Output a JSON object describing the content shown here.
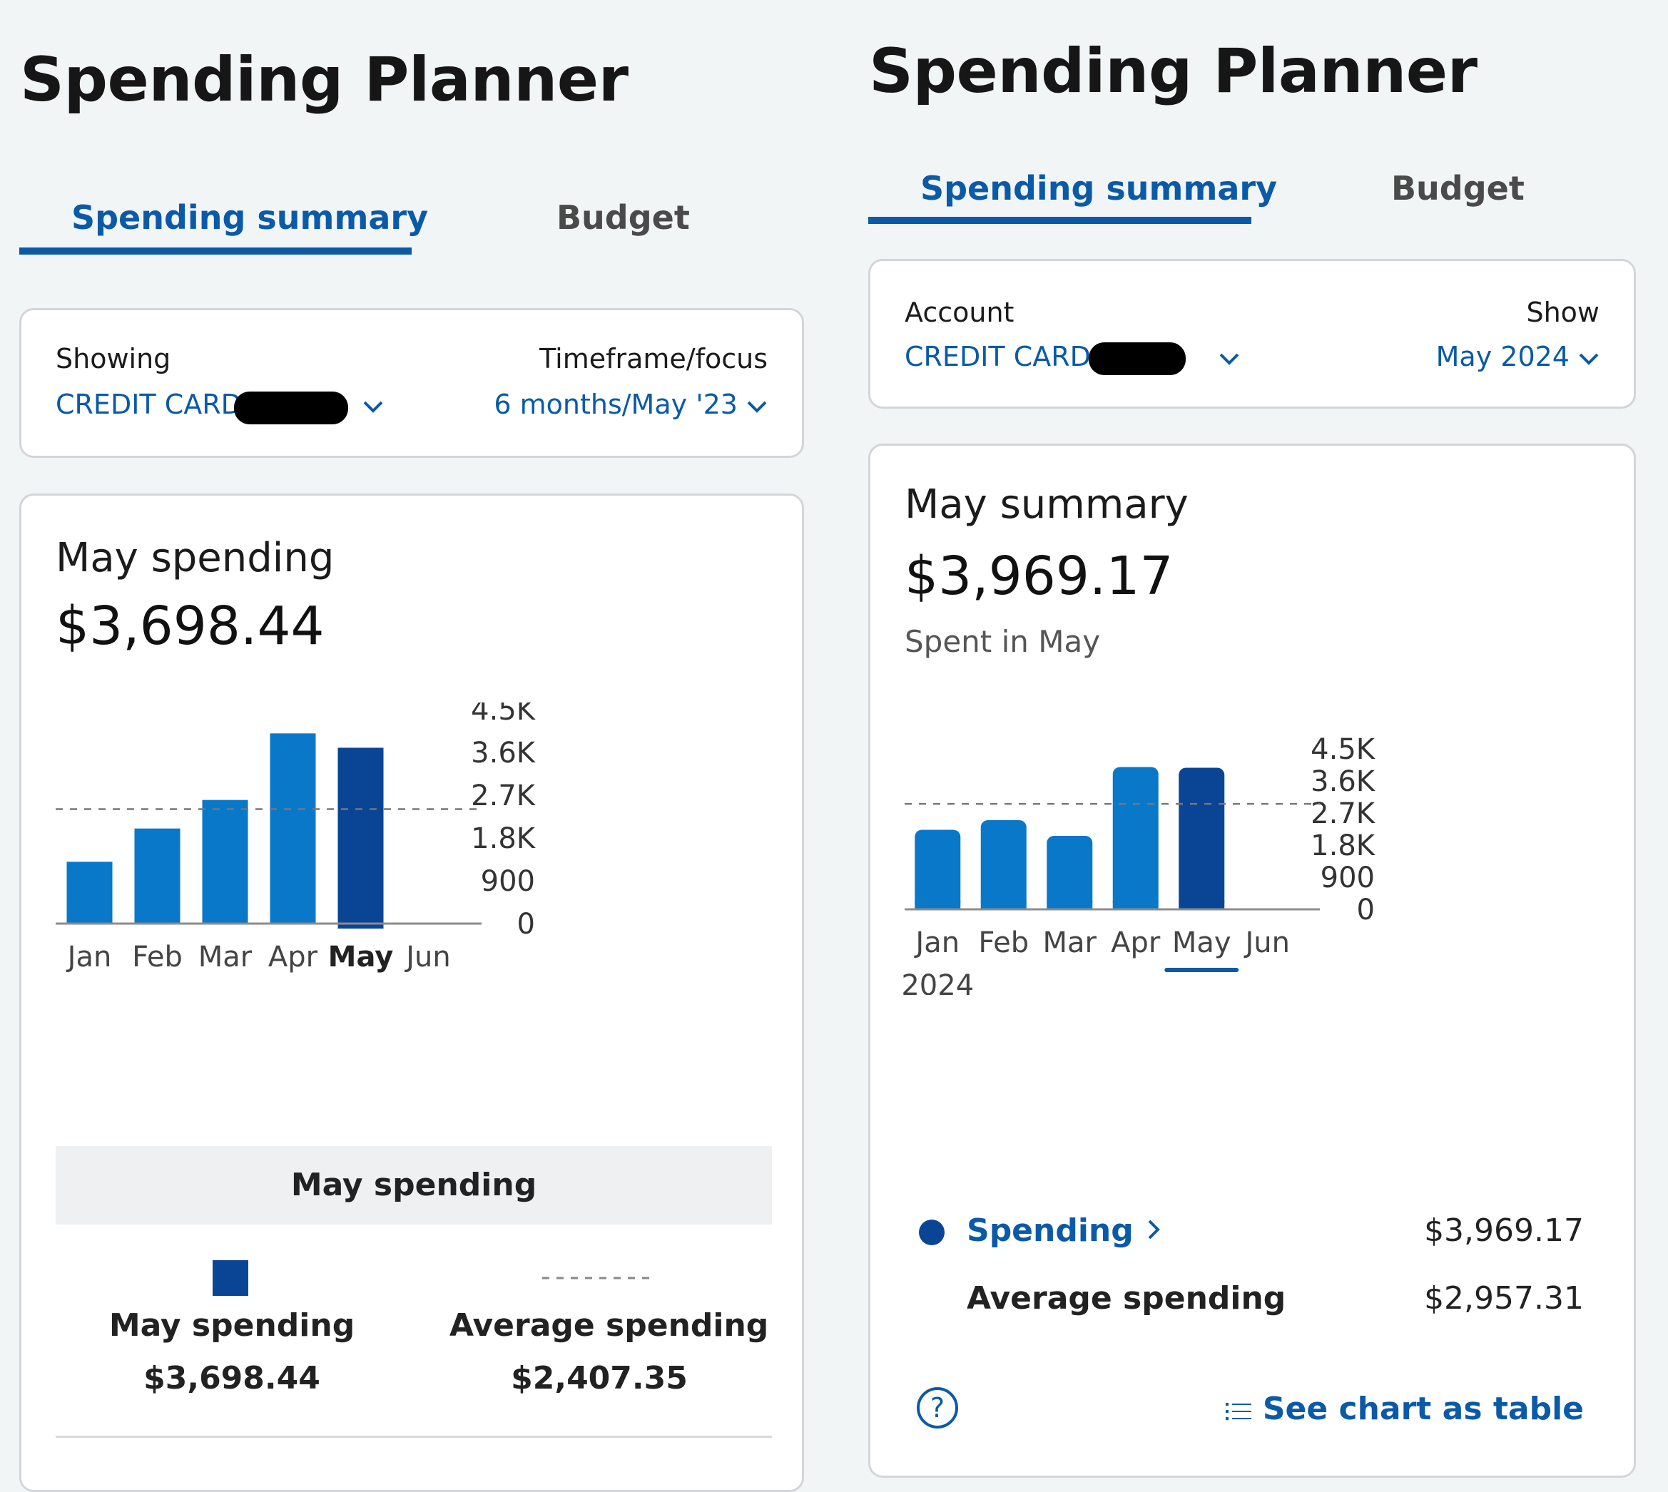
{
  "left": {
    "title": "Spending Planner",
    "tabs": {
      "active": "Spending summary",
      "inactive": "Budget"
    },
    "filters": {
      "label_left": "Showing",
      "value_left": "CREDIT CARD (",
      "label_right": "Timeframe/focus",
      "value_right": "6 months/May '23"
    },
    "summary": {
      "heading": "May spending",
      "amount": "$3,698.44"
    },
    "legend": {
      "header": "May spending",
      "item1_label": "May spending",
      "item1_value": "$3,698.44",
      "item2_label": "Average spending",
      "item2_value": "$2,407.35"
    }
  },
  "right": {
    "title": "Spending Planner",
    "tabs": {
      "active": "Spending summary",
      "inactive": "Budget"
    },
    "filters": {
      "label_left": "Account",
      "value_left": "CREDIT CARD (",
      "label_right": "Show",
      "value_right": "May 2024"
    },
    "summary": {
      "heading": "May summary",
      "amount": "$3,969.17",
      "subtitle": "Spent in May"
    },
    "rows": {
      "spending_label": "Spending",
      "spending_value": "$3,969.17",
      "average_label": "Average spending",
      "average_value": "$2,957.31"
    },
    "footer": {
      "help_symbol": "?",
      "table_link": "See chart as table"
    }
  },
  "colors": {
    "accent": "#0b5aa8",
    "bar": "#0a78c9",
    "bar_selected": "#0a4595",
    "grid": "#9a9a9a"
  },
  "chart_data": [
    {
      "type": "bar",
      "categories": [
        "Jan",
        "Feb",
        "Mar",
        "Apr",
        "May",
        "Jun"
      ],
      "values": [
        1300,
        2000,
        2600,
        4000,
        3698.44,
        0
      ],
      "selected": "May",
      "average": 2407.35,
      "yticks": [
        "4.5K",
        "3.6K",
        "2.7K",
        "1.8K",
        "900",
        "0"
      ],
      "ylim": [
        0,
        4500
      ],
      "legend": "bottom",
      "year_label": ""
    },
    {
      "type": "bar",
      "categories": [
        "Jan",
        "Feb",
        "Mar",
        "Apr",
        "May",
        "Jun"
      ],
      "values": [
        2230,
        2500,
        2060,
        3990,
        3969.17,
        0
      ],
      "selected": "May",
      "average": 2957.31,
      "yticks": [
        "4.5K",
        "3.6K",
        "2.7K",
        "1.8K",
        "900",
        "0"
      ],
      "ylim": [
        0,
        4500
      ],
      "legend": "none",
      "year_label": "2024"
    }
  ]
}
